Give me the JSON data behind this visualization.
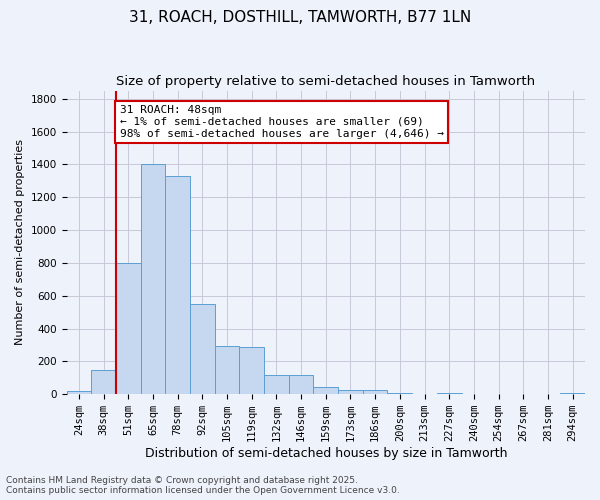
{
  "title1": "31, ROACH, DOSTHILL, TAMWORTH, B77 1LN",
  "title2": "Size of property relative to semi-detached houses in Tamworth",
  "xlabel": "Distribution of semi-detached houses by size in Tamworth",
  "ylabel": "Number of semi-detached properties",
  "footer": "Contains HM Land Registry data © Crown copyright and database right 2025.\nContains public sector information licensed under the Open Government Licence v3.0.",
  "categories": [
    "24sqm",
    "38sqm",
    "51sqm",
    "65sqm",
    "78sqm",
    "92sqm",
    "105sqm",
    "119sqm",
    "132sqm",
    "146sqm",
    "159sqm",
    "173sqm",
    "186sqm",
    "200sqm",
    "213sqm",
    "227sqm",
    "240sqm",
    "254sqm",
    "267sqm",
    "281sqm",
    "294sqm"
  ],
  "values": [
    20,
    150,
    800,
    1400,
    1330,
    550,
    295,
    290,
    120,
    120,
    45,
    25,
    25,
    5,
    0,
    5,
    0,
    0,
    0,
    0,
    8
  ],
  "bar_color": "#c5d8f0",
  "bar_edge_color": "#5a9fd4",
  "bar_linewidth": 0.7,
  "grid_color": "#c8c8d8",
  "bg_color": "#eef2fb",
  "annotation_text": "31 ROACH: 48sqm\n← 1% of semi-detached houses are smaller (69)\n98% of semi-detached houses are larger (4,646) →",
  "annotation_box_color": "#ffffff",
  "annotation_box_edge": "#cc0000",
  "vline_x": 1.5,
  "vline_color": "#cc0000",
  "ylim": [
    0,
    1850
  ],
  "yticks": [
    0,
    200,
    400,
    600,
    800,
    1000,
    1200,
    1400,
    1600,
    1800
  ],
  "title1_fontsize": 11,
  "title2_fontsize": 9.5,
  "xlabel_fontsize": 9,
  "ylabel_fontsize": 8,
  "tick_fontsize": 7.5,
  "footer_fontsize": 6.5,
  "annotation_fontsize": 8
}
